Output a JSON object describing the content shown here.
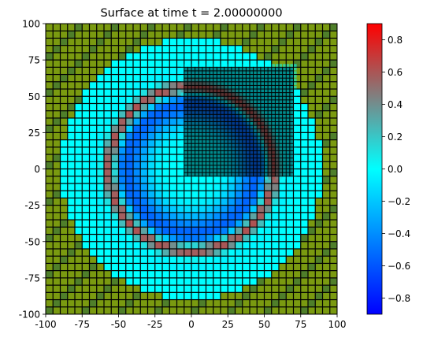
{
  "chart_data": {
    "type": "heatmap",
    "title": "Surface at time t =     2.00000000",
    "xlabel": "",
    "ylabel": "",
    "xlim": [
      -100,
      100
    ],
    "ylim": [
      -100,
      100
    ],
    "x_ticks": [
      "-100",
      "-75",
      "-50",
      "-25",
      "0",
      "25",
      "50",
      "75",
      "100"
    ],
    "y_ticks": [
      "100",
      "75",
      "50",
      "25",
      "0",
      "-25",
      "-50",
      "-75",
      "-100"
    ],
    "grid": false,
    "colorbar": {
      "range": [
        -0.9,
        0.9
      ],
      "ticks": [
        "0.8",
        "0.6",
        "0.4",
        "0.2",
        "0.0",
        "−0.2",
        "−0.4",
        "−0.6",
        "−0.8"
      ],
      "tick_values": [
        0.8,
        0.6,
        0.4,
        0.2,
        0.0,
        -0.2,
        -0.4,
        -0.6,
        -0.8
      ],
      "colors": [
        {
          "value": -0.9,
          "color": "#0000ff"
        },
        {
          "value": -0.45,
          "color": "#0080ff"
        },
        {
          "value": 0.0,
          "color": "#00ffff"
        },
        {
          "value": 0.45,
          "color": "#808080"
        },
        {
          "value": 0.9,
          "color": "#ff0000"
        }
      ]
    },
    "field": {
      "coarse_cell_size": 5,
      "fine_cell_size": 2.5,
      "refined_patch": {
        "x": [
          -7.5,
          72.5
        ],
        "y": [
          -7.5,
          72.5
        ]
      },
      "background_value": 0.0,
      "ring_center": [
        0,
        0
      ],
      "ring_radius": 56,
      "ring_width": 5,
      "ring_peak": 0.9,
      "trough_radius": 45,
      "trough_width": 14,
      "trough_value": -0.55,
      "dry_radius": 90,
      "dry_colors": [
        "#7a9a10",
        "#4f7f2a"
      ]
    }
  }
}
